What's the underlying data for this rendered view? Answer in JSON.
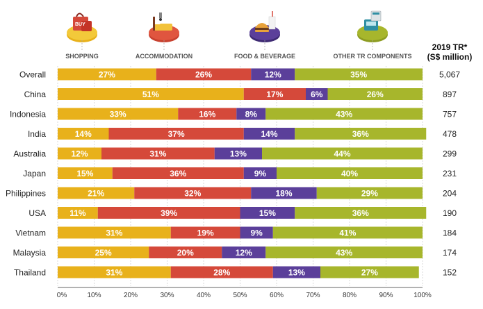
{
  "chart_data": {
    "type": "bar",
    "orientation": "horizontal",
    "stacked": true,
    "categories": [
      "Overall",
      "China",
      "Indonesia",
      "India",
      "Australia",
      "Japan",
      "Philippines",
      "USA",
      "Vietnam",
      "Malaysia",
      "Thailand"
    ],
    "series": [
      {
        "name": "SHOPPING",
        "color": "#E8B11B",
        "icon": "shopping-bag-icon",
        "values": [
          27,
          51,
          33,
          14,
          12,
          15,
          21,
          11,
          31,
          25,
          31
        ]
      },
      {
        "name": "ACCOMMODATION",
        "color": "#D5493A",
        "icon": "hotel-bed-icon",
        "values": [
          26,
          17,
          16,
          37,
          31,
          36,
          32,
          39,
          19,
          20,
          28
        ]
      },
      {
        "name": "FOOD & BEVERAGE",
        "color": "#5B3F9A",
        "icon": "burger-drink-icon",
        "values": [
          12,
          6,
          8,
          14,
          13,
          9,
          18,
          15,
          9,
          12,
          13
        ]
      },
      {
        "name": "OTHER TR COMPONENTS",
        "color": "#A7B62C",
        "icon": "tax-refund-terminal-icon",
        "values": [
          35,
          26,
          43,
          36,
          44,
          40,
          29,
          36,
          41,
          43,
          27
        ]
      }
    ],
    "label_suffix": "%",
    "xlim": [
      0,
      100
    ],
    "x_ticks": [
      "0%",
      "10%",
      "20%",
      "30%",
      "40%",
      "50%",
      "60%",
      "70%",
      "80%",
      "90%",
      "100%"
    ],
    "right_column": {
      "header_line1": "2019 TR*",
      "header_line2": "(S$ million)",
      "values": [
        "5,067",
        "897",
        "757",
        "478",
        "299",
        "231",
        "204",
        "190",
        "184",
        "174",
        "152"
      ]
    },
    "legend_placement": "top",
    "grid": "vertical-dashed"
  }
}
